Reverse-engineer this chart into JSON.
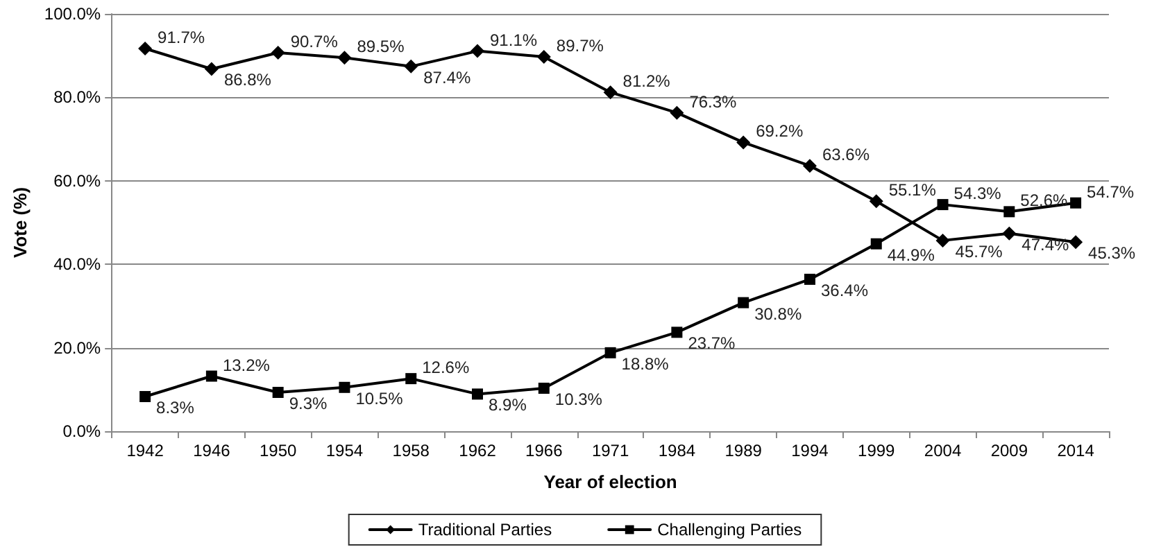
{
  "chart_data": {
    "type": "line",
    "xlabel": "Year of election",
    "ylabel": "Vote (%)",
    "categories": [
      "1942",
      "1946",
      "1950",
      "1954",
      "1958",
      "1962",
      "1966",
      "1971",
      "1984",
      "1989",
      "1994",
      "1999",
      "2004",
      "2009",
      "2014"
    ],
    "series": [
      {
        "name": "Traditional Parties",
        "color": "#000000",
        "marker": "diamond",
        "values": [
          91.7,
          86.8,
          90.7,
          89.5,
          87.4,
          91.1,
          89.7,
          81.2,
          76.3,
          69.2,
          63.6,
          55.1,
          45.7,
          47.4,
          45.3
        ],
        "value_labels": [
          "91.7%",
          "86.8%",
          "90.7%",
          "89.5%",
          "87.4%",
          "91.1%",
          "89.7%",
          "81.2%",
          "76.3%",
          "69.2%",
          "63.6%",
          "55.1%",
          "45.7%",
          "47.4%",
          "45.3%"
        ]
      },
      {
        "name": "Challenging Parties",
        "color": "#000000",
        "marker": "square",
        "values": [
          8.3,
          13.2,
          9.3,
          10.5,
          12.6,
          8.9,
          10.3,
          18.8,
          23.7,
          30.8,
          36.4,
          44.9,
          54.3,
          52.6,
          54.7
        ],
        "value_labels": [
          "8.3%",
          "13.2%",
          "9.3%",
          "10.5%",
          "12.6%",
          "8.9%",
          "10.3%",
          "18.8%",
          "23.7%",
          "30.8%",
          "36.4%",
          "44.9%",
          "54.3%",
          "52.6%",
          "54.7%"
        ]
      }
    ],
    "ylim": [
      0,
      100
    ],
    "yticks": [
      {
        "value": 0,
        "label": "0.0%"
      },
      {
        "value": 20,
        "label": "20.0%"
      },
      {
        "value": 40,
        "label": "40.0%"
      },
      {
        "value": 60,
        "label": "60.0%"
      },
      {
        "value": 80,
        "label": "80.0%"
      },
      {
        "value": 100,
        "label": "100.0%"
      }
    ],
    "grid": "y",
    "legend": "bottom",
    "line_style": "solid"
  }
}
